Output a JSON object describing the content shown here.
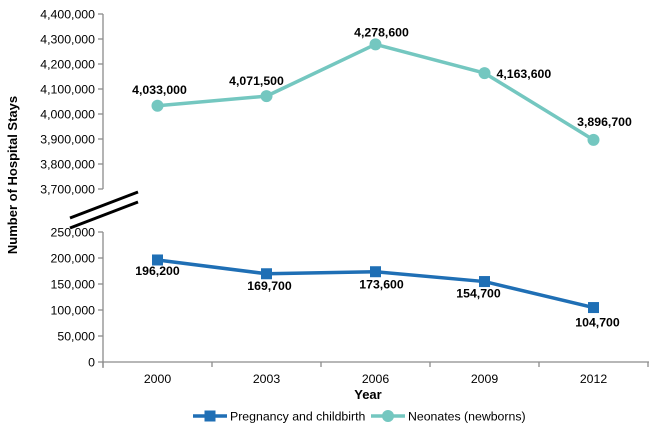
{
  "chart_data": {
    "type": "line",
    "title": "",
    "xlabel": "Year",
    "ylabel": "Number of Hospital Stays",
    "categories": [
      "2000",
      "2003",
      "2006",
      "2009",
      "2012"
    ],
    "axis_break": true,
    "grid": false,
    "legend_position": "bottom",
    "axis_color": "#8C8C8C",
    "y_axis_top": {
      "min": 3700000,
      "max": 4400000,
      "step": 100000,
      "tick_labels": [
        "4,400,000",
        "4,300,000",
        "4,200,000",
        "4,100,000",
        "4,000,000",
        "3,900,000",
        "3,800,000",
        "3,700,000"
      ]
    },
    "y_axis_bottom": {
      "min": 0,
      "max": 250000,
      "step": 50000,
      "tick_labels": [
        "250,000",
        "200,000",
        "150,000",
        "100,000",
        "50,000",
        "0"
      ]
    },
    "series": [
      {
        "name": "Pregnancy and childbirth",
        "axis": "bottom",
        "color": "#1F6FB5",
        "marker": "square",
        "values": [
          196200,
          169700,
          173600,
          154700,
          104700
        ],
        "labels": [
          "196,200",
          "169,700",
          "173,600",
          "154,700",
          "104,700"
        ]
      },
      {
        "name": "Neonates (newborns)",
        "axis": "top",
        "color": "#74C7C0",
        "marker": "circle",
        "values": [
          4033000,
          4071500,
          4278600,
          4163600,
          3896700
        ],
        "labels": [
          "4,033,000",
          "4,071,500",
          "4,278,600",
          "4,163,600",
          "3,896,700"
        ]
      }
    ],
    "legend": [
      "Pregnancy and childbirth",
      "Neonates (newborns)"
    ]
  }
}
